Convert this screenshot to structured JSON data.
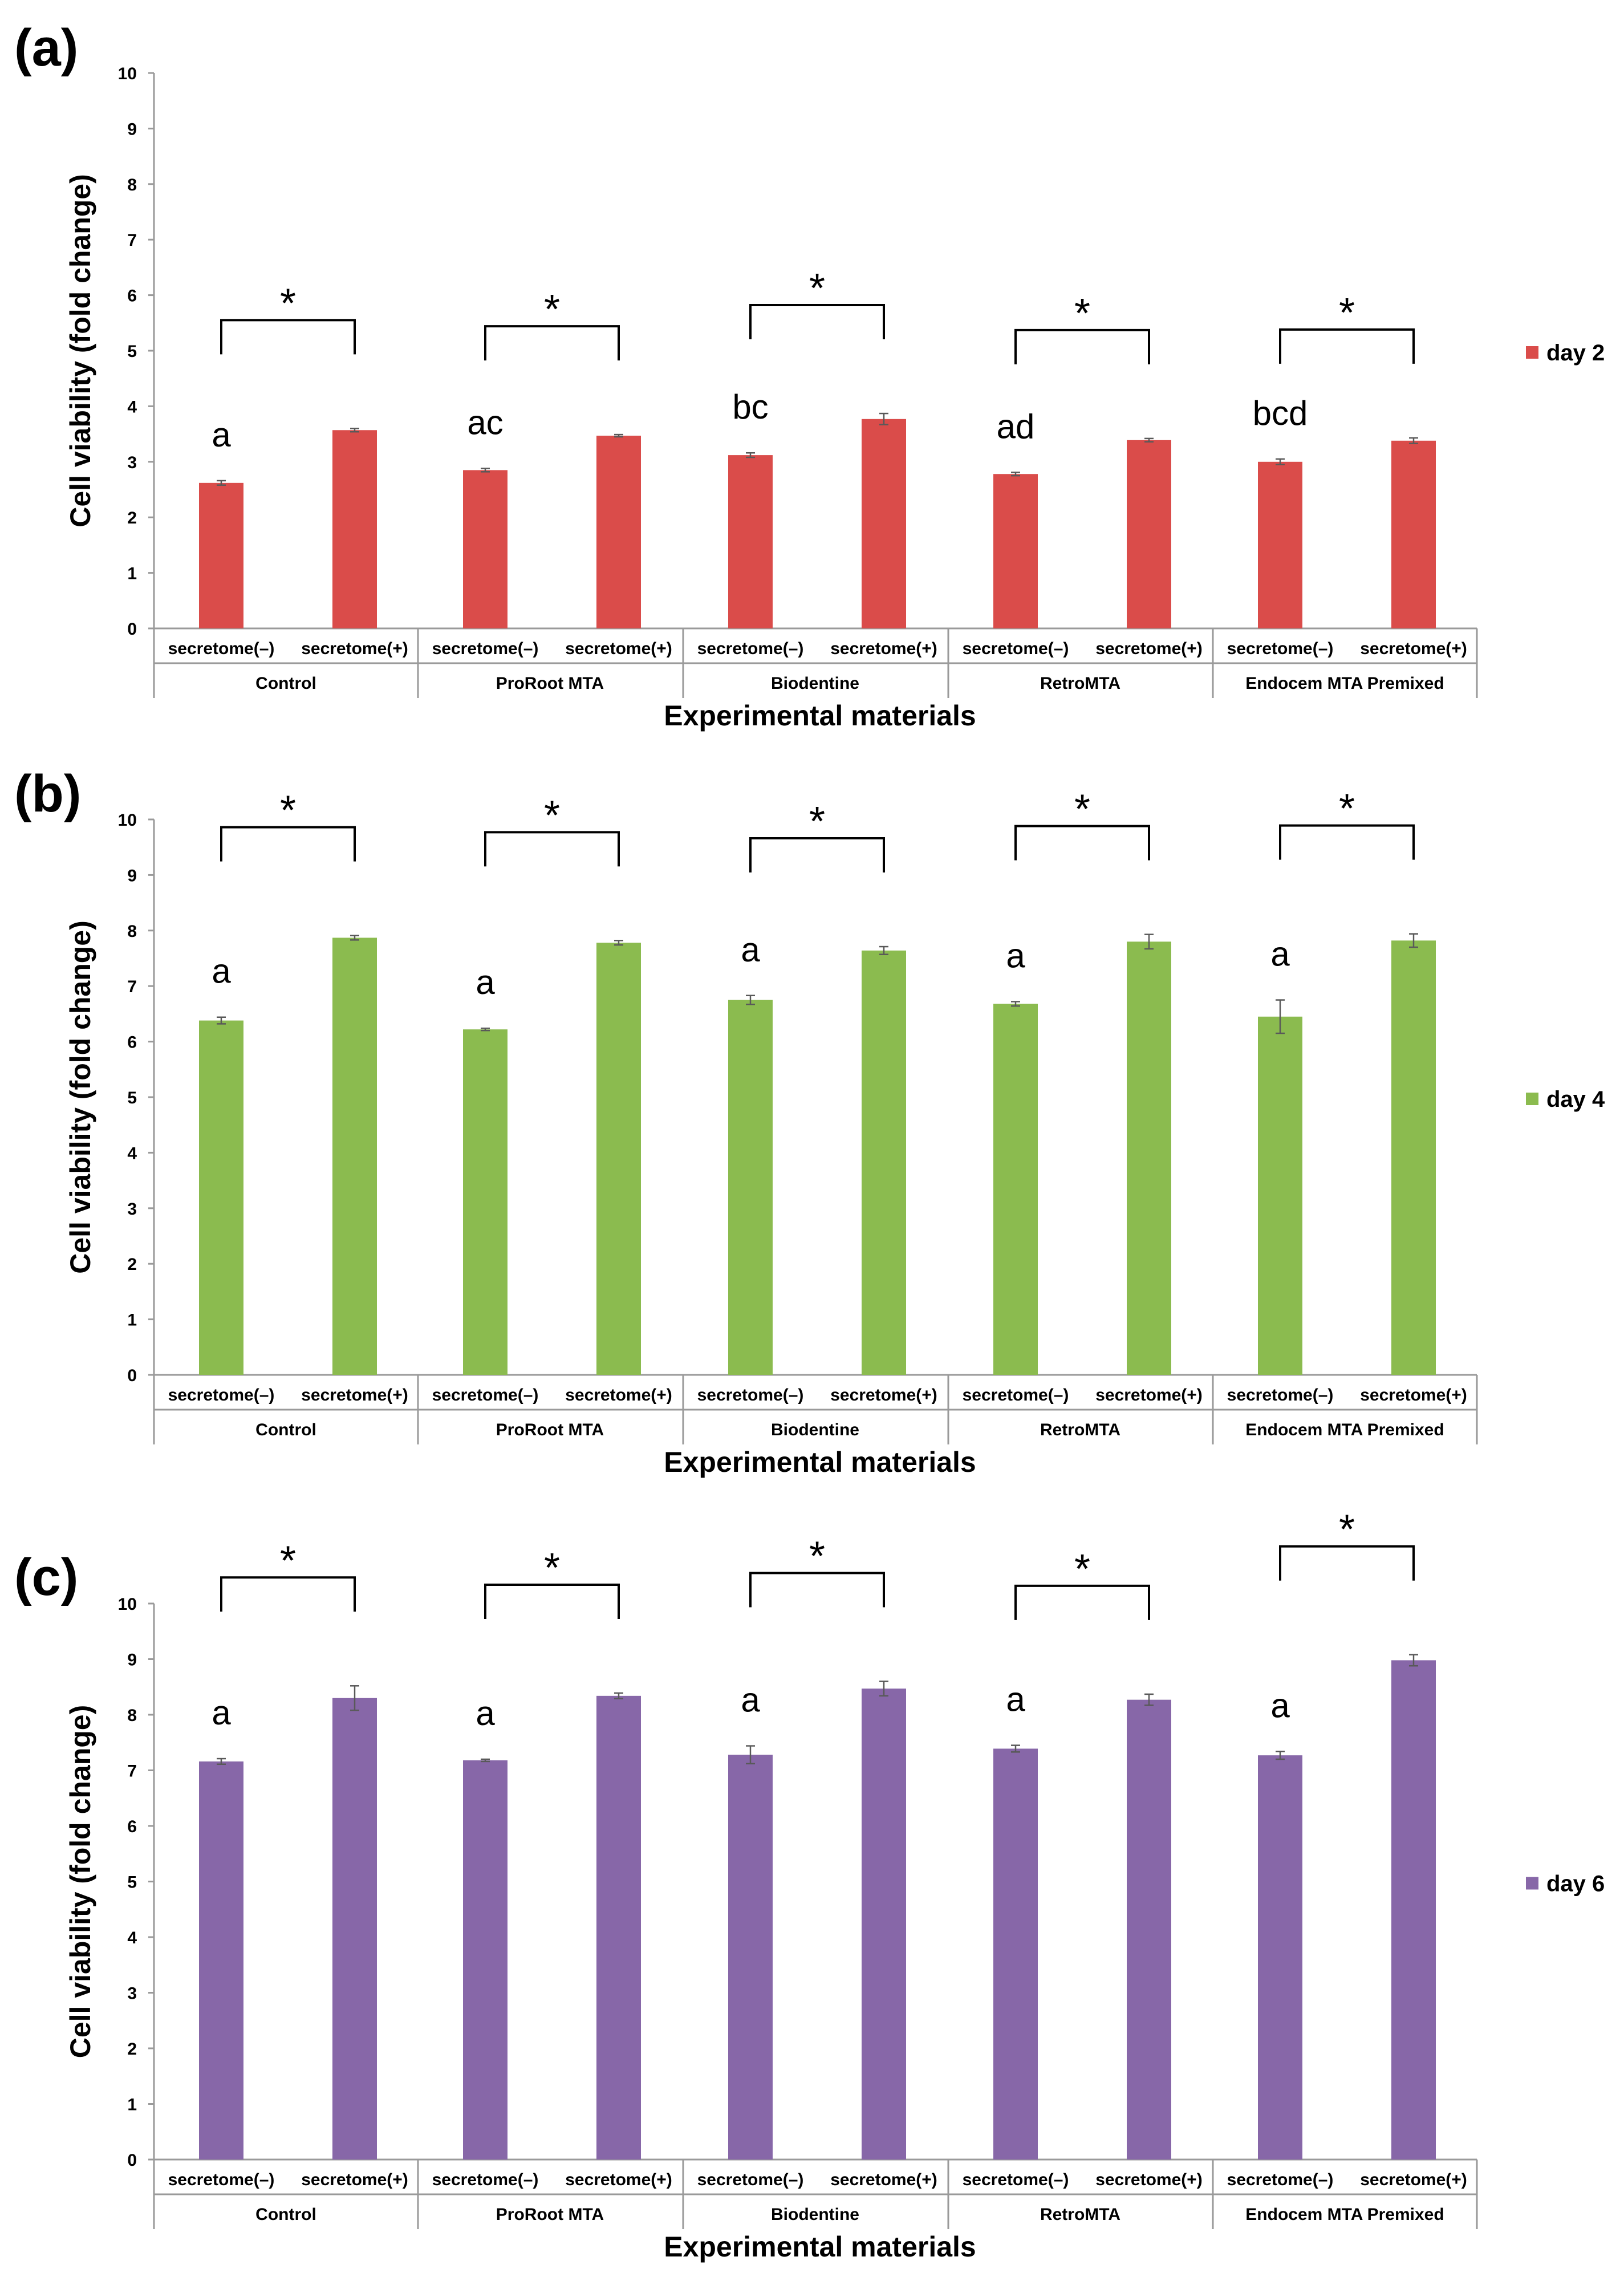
{
  "chart_data": [
    {
      "type": "bar",
      "panel_label": "(a)",
      "color": "#DA4C4A",
      "ylabel": "Cell viability (fold change)",
      "xlabel": "Experimental materials",
      "ylim": [
        0,
        10
      ],
      "yticks": [
        "0",
        "1",
        "2",
        "3",
        "4",
        "5",
        "6",
        "7",
        "8",
        "9",
        "10"
      ],
      "groups": [
        "Control",
        "ProRoot MTA",
        "Biodentine",
        "RetroMTA",
        "Endocem MTA Premixed"
      ],
      "subcategories": [
        "secretome(–)",
        "secretome(+)"
      ],
      "series": [
        {
          "name": "day 2",
          "values": [
            2.62,
            3.57,
            2.85,
            3.47,
            3.12,
            3.77,
            2.78,
            3.39,
            3.0,
            3.38
          ],
          "errors": [
            0.04,
            0.03,
            0.03,
            0.02,
            0.04,
            0.1,
            0.03,
            0.03,
            0.05,
            0.05
          ]
        }
      ],
      "significance_letters": [
        "a",
        "ac",
        "bc",
        "ad",
        "bcd"
      ],
      "significance_marker": "*"
    },
    {
      "type": "bar",
      "panel_label": "(b)",
      "color": "#8BBB4F",
      "ylabel": "Cell viability (fold change)",
      "xlabel": "Experimental materials",
      "ylim": [
        0,
        10
      ],
      "yticks": [
        "0",
        "1",
        "2",
        "3",
        "4",
        "5",
        "6",
        "7",
        "8",
        "9",
        "10"
      ],
      "groups": [
        "Control",
        "ProRoot MTA",
        "Biodentine",
        "RetroMTA",
        "Endocem MTA Premixed"
      ],
      "subcategories": [
        "secretome(–)",
        "secretome(+)"
      ],
      "series": [
        {
          "name": "day 4",
          "values": [
            6.38,
            7.87,
            6.22,
            7.78,
            6.75,
            7.64,
            6.68,
            7.8,
            6.45,
            7.82
          ],
          "errors": [
            0.06,
            0.04,
            0.02,
            0.04,
            0.08,
            0.07,
            0.04,
            0.13,
            0.3,
            0.12
          ]
        }
      ],
      "significance_letters": [
        "a",
        "a",
        "a",
        "a",
        "a"
      ],
      "significance_marker": "*"
    },
    {
      "type": "bar",
      "panel_label": "(c)",
      "color": "#8767A8",
      "ylabel": "Cell viability (fold change)",
      "xlabel": "Experimental materials",
      "ylim": [
        0,
        10
      ],
      "yticks": [
        "0",
        "1",
        "2",
        "3",
        "4",
        "5",
        "6",
        "7",
        "8",
        "9",
        "10"
      ],
      "groups": [
        "Control",
        "ProRoot MTA",
        "Biodentine",
        "RetroMTA",
        "Endocem MTA Premixed"
      ],
      "subcategories": [
        "secretome(–)",
        "secretome(+)"
      ],
      "series": [
        {
          "name": "day 6",
          "values": [
            7.16,
            8.3,
            7.18,
            8.34,
            7.28,
            8.47,
            7.39,
            8.27,
            7.27,
            8.98
          ],
          "errors": [
            0.05,
            0.22,
            0.02,
            0.05,
            0.16,
            0.13,
            0.06,
            0.1,
            0.07,
            0.1
          ]
        }
      ],
      "significance_letters": [
        "a",
        "a",
        "a",
        "a",
        "a"
      ],
      "significance_marker": "*"
    }
  ]
}
